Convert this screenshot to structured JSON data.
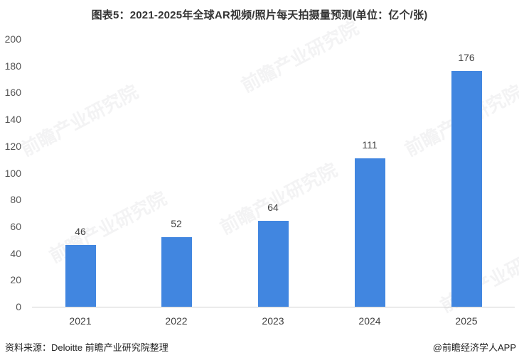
{
  "title": "图表5：2021-2025年全球AR视频/照片每天拍摄量预测(单位：亿个/张)",
  "source": "资料来源：Deloitte 前瞻产业研究院整理",
  "credit": "@前瞻经济学人APP",
  "watermark": "前瞻产业研究院",
  "colors": {
    "bar": "#4186e0",
    "axis": "#d0d0d0",
    "text": "#404040"
  },
  "y_ticks": [
    "0",
    "20",
    "40",
    "60",
    "80",
    "100",
    "120",
    "140",
    "160",
    "180",
    "200"
  ],
  "bars": [
    {
      "year": "2021",
      "value": 46,
      "label": "46"
    },
    {
      "year": "2022",
      "value": 52,
      "label": "52"
    },
    {
      "year": "2023",
      "value": 64,
      "label": "64"
    },
    {
      "year": "2024",
      "value": 111,
      "label": "111"
    },
    {
      "year": "2025",
      "value": 176,
      "label": "176"
    }
  ],
  "chart_data": {
    "type": "bar",
    "title": "图表5：2021-2025年全球AR视频/照片每天拍摄量预测(单位：亿个/张)",
    "categories": [
      "2021",
      "2022",
      "2023",
      "2024",
      "2025"
    ],
    "values": [
      46,
      52,
      64,
      111,
      176
    ],
    "xlabel": "",
    "ylabel": "亿个/张",
    "ylim": [
      0,
      200
    ],
    "yticks": [
      0,
      20,
      40,
      60,
      80,
      100,
      120,
      140,
      160,
      180,
      200
    ],
    "grid": false,
    "data_labels": true,
    "legend": null
  }
}
